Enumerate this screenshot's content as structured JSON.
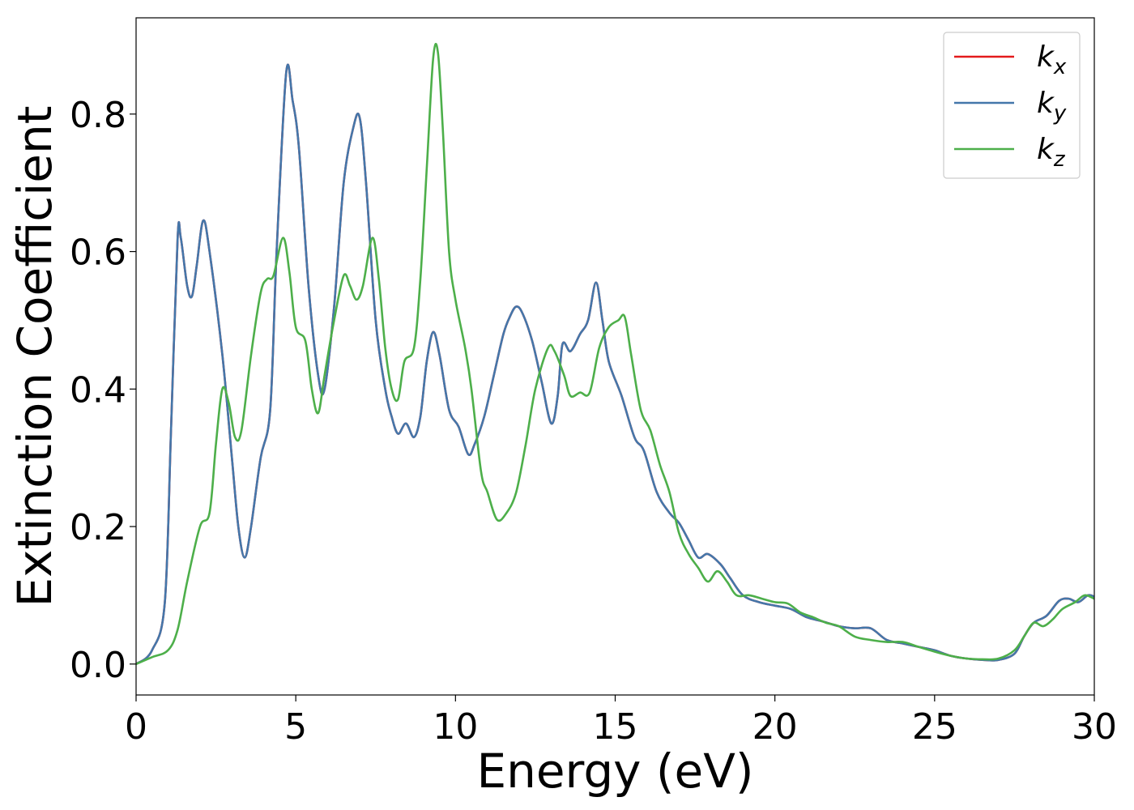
{
  "chart_data": {
    "type": "line",
    "title": "",
    "xlabel": "Energy (eV)",
    "ylabel": "Extinction Coefficient",
    "xlim": [
      0,
      30
    ],
    "ylim": [
      -0.045,
      0.94
    ],
    "xticks": [
      0,
      5,
      10,
      15,
      20,
      25,
      30
    ],
    "xtick_labels": [
      "0",
      "5",
      "10",
      "15",
      "20",
      "25",
      "30"
    ],
    "yticks": [
      0.0,
      0.2,
      0.4,
      0.6,
      0.8
    ],
    "ytick_labels": [
      "0.0",
      "0.2",
      "0.4",
      "0.6",
      "0.8"
    ],
    "grid": false,
    "legend_position": "top-right",
    "series": [
      {
        "name": "k",
        "subscript": "x",
        "color": "#e41a1c",
        "points": [
          [
            0,
            0.0
          ],
          [
            0.5,
            0.02
          ],
          [
            0.9,
            0.09
          ],
          [
            1.1,
            0.35
          ],
          [
            1.3,
            0.62
          ],
          [
            1.4,
            0.62
          ],
          [
            1.6,
            0.55
          ],
          [
            1.75,
            0.535
          ],
          [
            1.9,
            0.58
          ],
          [
            2.1,
            0.645
          ],
          [
            2.3,
            0.6
          ],
          [
            2.7,
            0.45
          ],
          [
            3.0,
            0.3
          ],
          [
            3.2,
            0.2
          ],
          [
            3.4,
            0.155
          ],
          [
            3.6,
            0.2
          ],
          [
            3.9,
            0.3
          ],
          [
            4.2,
            0.37
          ],
          [
            4.4,
            0.6
          ],
          [
            4.7,
            0.86
          ],
          [
            4.9,
            0.82
          ],
          [
            5.1,
            0.75
          ],
          [
            5.4,
            0.55
          ],
          [
            5.7,
            0.42
          ],
          [
            5.9,
            0.4
          ],
          [
            6.2,
            0.52
          ],
          [
            6.5,
            0.7
          ],
          [
            6.8,
            0.78
          ],
          [
            7.0,
            0.795
          ],
          [
            7.2,
            0.7
          ],
          [
            7.5,
            0.5
          ],
          [
            7.8,
            0.4
          ],
          [
            8.0,
            0.36
          ],
          [
            8.2,
            0.335
          ],
          [
            8.45,
            0.35
          ],
          [
            8.7,
            0.33
          ],
          [
            8.9,
            0.36
          ],
          [
            9.1,
            0.44
          ],
          [
            9.3,
            0.483
          ],
          [
            9.5,
            0.45
          ],
          [
            9.8,
            0.37
          ],
          [
            10.1,
            0.345
          ],
          [
            10.4,
            0.305
          ],
          [
            10.6,
            0.32
          ],
          [
            10.9,
            0.36
          ],
          [
            11.2,
            0.42
          ],
          [
            11.5,
            0.48
          ],
          [
            11.7,
            0.505
          ],
          [
            11.9,
            0.52
          ],
          [
            12.1,
            0.51
          ],
          [
            12.4,
            0.47
          ],
          [
            12.7,
            0.41
          ],
          [
            13.0,
            0.35
          ],
          [
            13.2,
            0.39
          ],
          [
            13.35,
            0.465
          ],
          [
            13.6,
            0.455
          ],
          [
            13.9,
            0.48
          ],
          [
            14.15,
            0.5
          ],
          [
            14.4,
            0.555
          ],
          [
            14.6,
            0.5
          ],
          [
            14.8,
            0.44
          ],
          [
            15.2,
            0.39
          ],
          [
            15.6,
            0.33
          ],
          [
            15.9,
            0.31
          ],
          [
            16.3,
            0.25
          ],
          [
            16.7,
            0.22
          ],
          [
            17.0,
            0.205
          ],
          [
            17.3,
            0.18
          ],
          [
            17.6,
            0.155
          ],
          [
            17.9,
            0.16
          ],
          [
            18.3,
            0.145
          ],
          [
            18.6,
            0.125
          ],
          [
            19.0,
            0.1
          ],
          [
            19.5,
            0.09
          ],
          [
            20.0,
            0.085
          ],
          [
            20.5,
            0.08
          ],
          [
            21.0,
            0.068
          ],
          [
            21.5,
            0.062
          ],
          [
            22.0,
            0.055
          ],
          [
            22.5,
            0.052
          ],
          [
            23.0,
            0.052
          ],
          [
            23.5,
            0.035
          ],
          [
            24.0,
            0.03
          ],
          [
            24.5,
            0.025
          ],
          [
            25.0,
            0.02
          ],
          [
            25.5,
            0.012
          ],
          [
            26.0,
            0.008
          ],
          [
            26.5,
            0.006
          ],
          [
            27.0,
            0.006
          ],
          [
            27.5,
            0.015
          ],
          [
            27.8,
            0.04
          ],
          [
            28.1,
            0.06
          ],
          [
            28.5,
            0.07
          ],
          [
            28.9,
            0.092
          ],
          [
            29.2,
            0.095
          ],
          [
            29.5,
            0.09
          ],
          [
            29.8,
            0.1
          ],
          [
            30.0,
            0.098
          ]
        ]
      },
      {
        "name": "k",
        "subscript": "y",
        "color": "#4477aa",
        "points": [
          [
            0,
            0.0
          ],
          [
            0.5,
            0.02
          ],
          [
            0.9,
            0.09
          ],
          [
            1.1,
            0.35
          ],
          [
            1.3,
            0.62
          ],
          [
            1.4,
            0.62
          ],
          [
            1.6,
            0.55
          ],
          [
            1.75,
            0.535
          ],
          [
            1.9,
            0.58
          ],
          [
            2.1,
            0.645
          ],
          [
            2.3,
            0.6
          ],
          [
            2.7,
            0.45
          ],
          [
            3.0,
            0.3
          ],
          [
            3.2,
            0.2
          ],
          [
            3.4,
            0.155
          ],
          [
            3.6,
            0.2
          ],
          [
            3.9,
            0.3
          ],
          [
            4.2,
            0.37
          ],
          [
            4.4,
            0.6
          ],
          [
            4.7,
            0.86
          ],
          [
            4.9,
            0.82
          ],
          [
            5.1,
            0.75
          ],
          [
            5.4,
            0.55
          ],
          [
            5.7,
            0.42
          ],
          [
            5.9,
            0.4
          ],
          [
            6.2,
            0.52
          ],
          [
            6.5,
            0.7
          ],
          [
            6.8,
            0.78
          ],
          [
            7.0,
            0.795
          ],
          [
            7.2,
            0.7
          ],
          [
            7.5,
            0.5
          ],
          [
            7.8,
            0.4
          ],
          [
            8.0,
            0.36
          ],
          [
            8.2,
            0.335
          ],
          [
            8.45,
            0.35
          ],
          [
            8.7,
            0.33
          ],
          [
            8.9,
            0.36
          ],
          [
            9.1,
            0.44
          ],
          [
            9.3,
            0.483
          ],
          [
            9.5,
            0.45
          ],
          [
            9.8,
            0.37
          ],
          [
            10.1,
            0.345
          ],
          [
            10.4,
            0.305
          ],
          [
            10.6,
            0.32
          ],
          [
            10.9,
            0.36
          ],
          [
            11.2,
            0.42
          ],
          [
            11.5,
            0.48
          ],
          [
            11.7,
            0.505
          ],
          [
            11.9,
            0.52
          ],
          [
            12.1,
            0.51
          ],
          [
            12.4,
            0.47
          ],
          [
            12.7,
            0.41
          ],
          [
            13.0,
            0.35
          ],
          [
            13.2,
            0.39
          ],
          [
            13.35,
            0.465
          ],
          [
            13.6,
            0.455
          ],
          [
            13.9,
            0.48
          ],
          [
            14.15,
            0.5
          ],
          [
            14.4,
            0.555
          ],
          [
            14.6,
            0.5
          ],
          [
            14.8,
            0.44
          ],
          [
            15.2,
            0.39
          ],
          [
            15.6,
            0.33
          ],
          [
            15.9,
            0.31
          ],
          [
            16.3,
            0.25
          ],
          [
            16.7,
            0.22
          ],
          [
            17.0,
            0.205
          ],
          [
            17.3,
            0.18
          ],
          [
            17.6,
            0.155
          ],
          [
            17.9,
            0.16
          ],
          [
            18.3,
            0.145
          ],
          [
            18.6,
            0.125
          ],
          [
            19.0,
            0.1
          ],
          [
            19.5,
            0.09
          ],
          [
            20.0,
            0.085
          ],
          [
            20.5,
            0.08
          ],
          [
            21.0,
            0.068
          ],
          [
            21.5,
            0.062
          ],
          [
            22.0,
            0.055
          ],
          [
            22.5,
            0.052
          ],
          [
            23.0,
            0.052
          ],
          [
            23.5,
            0.035
          ],
          [
            24.0,
            0.03
          ],
          [
            24.5,
            0.025
          ],
          [
            25.0,
            0.02
          ],
          [
            25.5,
            0.012
          ],
          [
            26.0,
            0.008
          ],
          [
            26.5,
            0.006
          ],
          [
            27.0,
            0.006
          ],
          [
            27.5,
            0.015
          ],
          [
            27.8,
            0.04
          ],
          [
            28.1,
            0.06
          ],
          [
            28.5,
            0.07
          ],
          [
            28.9,
            0.092
          ],
          [
            29.2,
            0.095
          ],
          [
            29.5,
            0.09
          ],
          [
            29.8,
            0.1
          ],
          [
            30.0,
            0.098
          ]
        ]
      },
      {
        "name": "k",
        "subscript": "z",
        "color": "#4daf4a",
        "points": [
          [
            0,
            0.0
          ],
          [
            0.5,
            0.01
          ],
          [
            1.0,
            0.02
          ],
          [
            1.3,
            0.05
          ],
          [
            1.6,
            0.12
          ],
          [
            2.0,
            0.2
          ],
          [
            2.3,
            0.22
          ],
          [
            2.5,
            0.32
          ],
          [
            2.7,
            0.4
          ],
          [
            2.9,
            0.38
          ],
          [
            3.1,
            0.33
          ],
          [
            3.3,
            0.34
          ],
          [
            3.6,
            0.45
          ],
          [
            3.9,
            0.54
          ],
          [
            4.1,
            0.56
          ],
          [
            4.3,
            0.565
          ],
          [
            4.6,
            0.62
          ],
          [
            4.8,
            0.57
          ],
          [
            5.0,
            0.49
          ],
          [
            5.3,
            0.47
          ],
          [
            5.5,
            0.4
          ],
          [
            5.7,
            0.365
          ],
          [
            5.9,
            0.42
          ],
          [
            6.2,
            0.5
          ],
          [
            6.5,
            0.565
          ],
          [
            6.7,
            0.55
          ],
          [
            6.9,
            0.53
          ],
          [
            7.1,
            0.55
          ],
          [
            7.4,
            0.62
          ],
          [
            7.6,
            0.56
          ],
          [
            7.8,
            0.46
          ],
          [
            8.0,
            0.4
          ],
          [
            8.2,
            0.385
          ],
          [
            8.4,
            0.44
          ],
          [
            8.7,
            0.46
          ],
          [
            8.9,
            0.56
          ],
          [
            9.1,
            0.72
          ],
          [
            9.3,
            0.88
          ],
          [
            9.45,
            0.89
          ],
          [
            9.6,
            0.78
          ],
          [
            9.8,
            0.6
          ],
          [
            10.0,
            0.53
          ],
          [
            10.3,
            0.46
          ],
          [
            10.5,
            0.4
          ],
          [
            10.8,
            0.28
          ],
          [
            11.0,
            0.25
          ],
          [
            11.3,
            0.21
          ],
          [
            11.6,
            0.22
          ],
          [
            11.9,
            0.25
          ],
          [
            12.2,
            0.32
          ],
          [
            12.5,
            0.4
          ],
          [
            12.9,
            0.46
          ],
          [
            13.1,
            0.455
          ],
          [
            13.4,
            0.42
          ],
          [
            13.6,
            0.39
          ],
          [
            13.9,
            0.395
          ],
          [
            14.2,
            0.395
          ],
          [
            14.5,
            0.46
          ],
          [
            14.8,
            0.49
          ],
          [
            15.1,
            0.5
          ],
          [
            15.3,
            0.505
          ],
          [
            15.5,
            0.45
          ],
          [
            15.8,
            0.37
          ],
          [
            16.1,
            0.34
          ],
          [
            16.4,
            0.29
          ],
          [
            16.7,
            0.25
          ],
          [
            17.0,
            0.19
          ],
          [
            17.3,
            0.16
          ],
          [
            17.6,
            0.14
          ],
          [
            17.9,
            0.12
          ],
          [
            18.2,
            0.135
          ],
          [
            18.5,
            0.12
          ],
          [
            18.8,
            0.1
          ],
          [
            19.2,
            0.1
          ],
          [
            19.6,
            0.095
          ],
          [
            20.0,
            0.09
          ],
          [
            20.4,
            0.088
          ],
          [
            20.8,
            0.075
          ],
          [
            21.2,
            0.068
          ],
          [
            21.6,
            0.06
          ],
          [
            22.0,
            0.055
          ],
          [
            22.5,
            0.04
          ],
          [
            23.0,
            0.035
          ],
          [
            23.5,
            0.032
          ],
          [
            24.0,
            0.032
          ],
          [
            24.5,
            0.025
          ],
          [
            25.0,
            0.018
          ],
          [
            25.5,
            0.012
          ],
          [
            26.0,
            0.008
          ],
          [
            26.5,
            0.007
          ],
          [
            27.0,
            0.008
          ],
          [
            27.5,
            0.02
          ],
          [
            27.8,
            0.04
          ],
          [
            28.1,
            0.06
          ],
          [
            28.4,
            0.055
          ],
          [
            28.7,
            0.065
          ],
          [
            29.0,
            0.08
          ],
          [
            29.4,
            0.09
          ],
          [
            29.7,
            0.1
          ],
          [
            30.0,
            0.095
          ]
        ]
      }
    ]
  }
}
